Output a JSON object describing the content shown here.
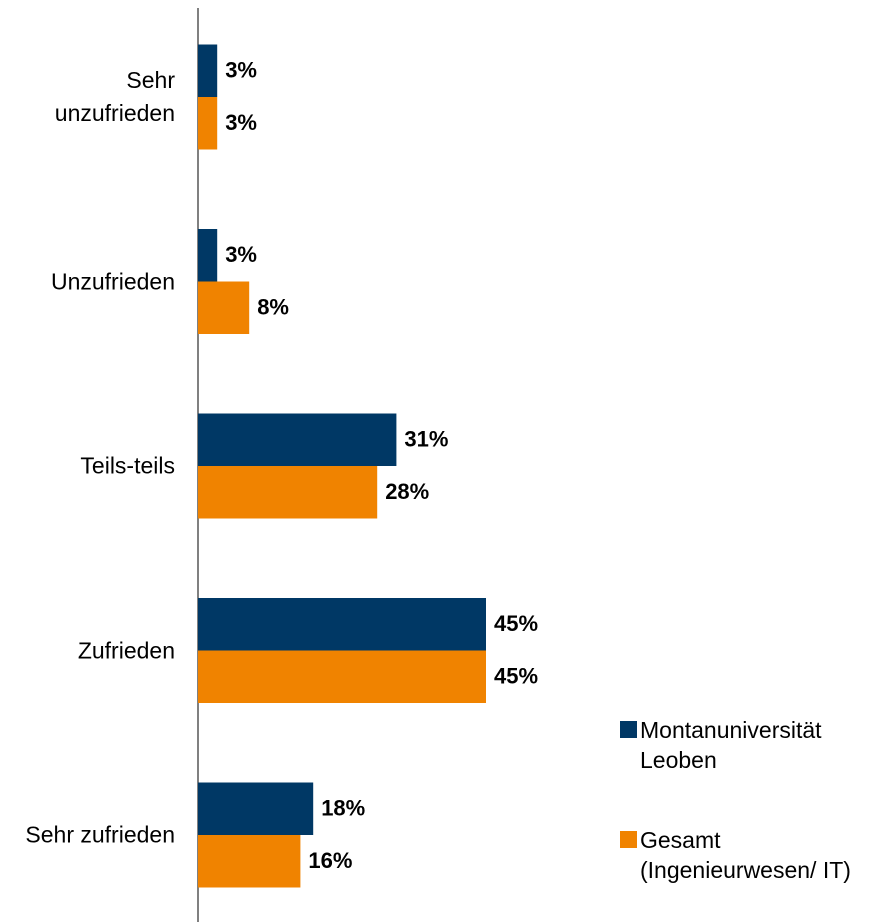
{
  "chart_data": {
    "type": "hbar",
    "categories": [
      "Sehr unzufrieden",
      "Unzufrieden",
      "Teils-teils",
      "Zufrieden",
      "Sehr zufrieden"
    ],
    "series": [
      {
        "name": "Montanuniversität Leoben",
        "color": "#003865",
        "values": [
          3,
          3,
          31,
          45,
          18
        ],
        "value_labels": [
          "3%",
          "3%",
          "31%",
          "45%",
          "18%"
        ]
      },
      {
        "name": "Gesamt (Ingenieurwesen/ IT)",
        "color": "#f08300",
        "values": [
          3,
          8,
          28,
          45,
          16
        ],
        "value_labels": [
          "3%",
          "8%",
          "28%",
          "45%",
          "16%"
        ]
      }
    ],
    "xlim": [
      0,
      100
    ],
    "legend": "bottom-right"
  }
}
